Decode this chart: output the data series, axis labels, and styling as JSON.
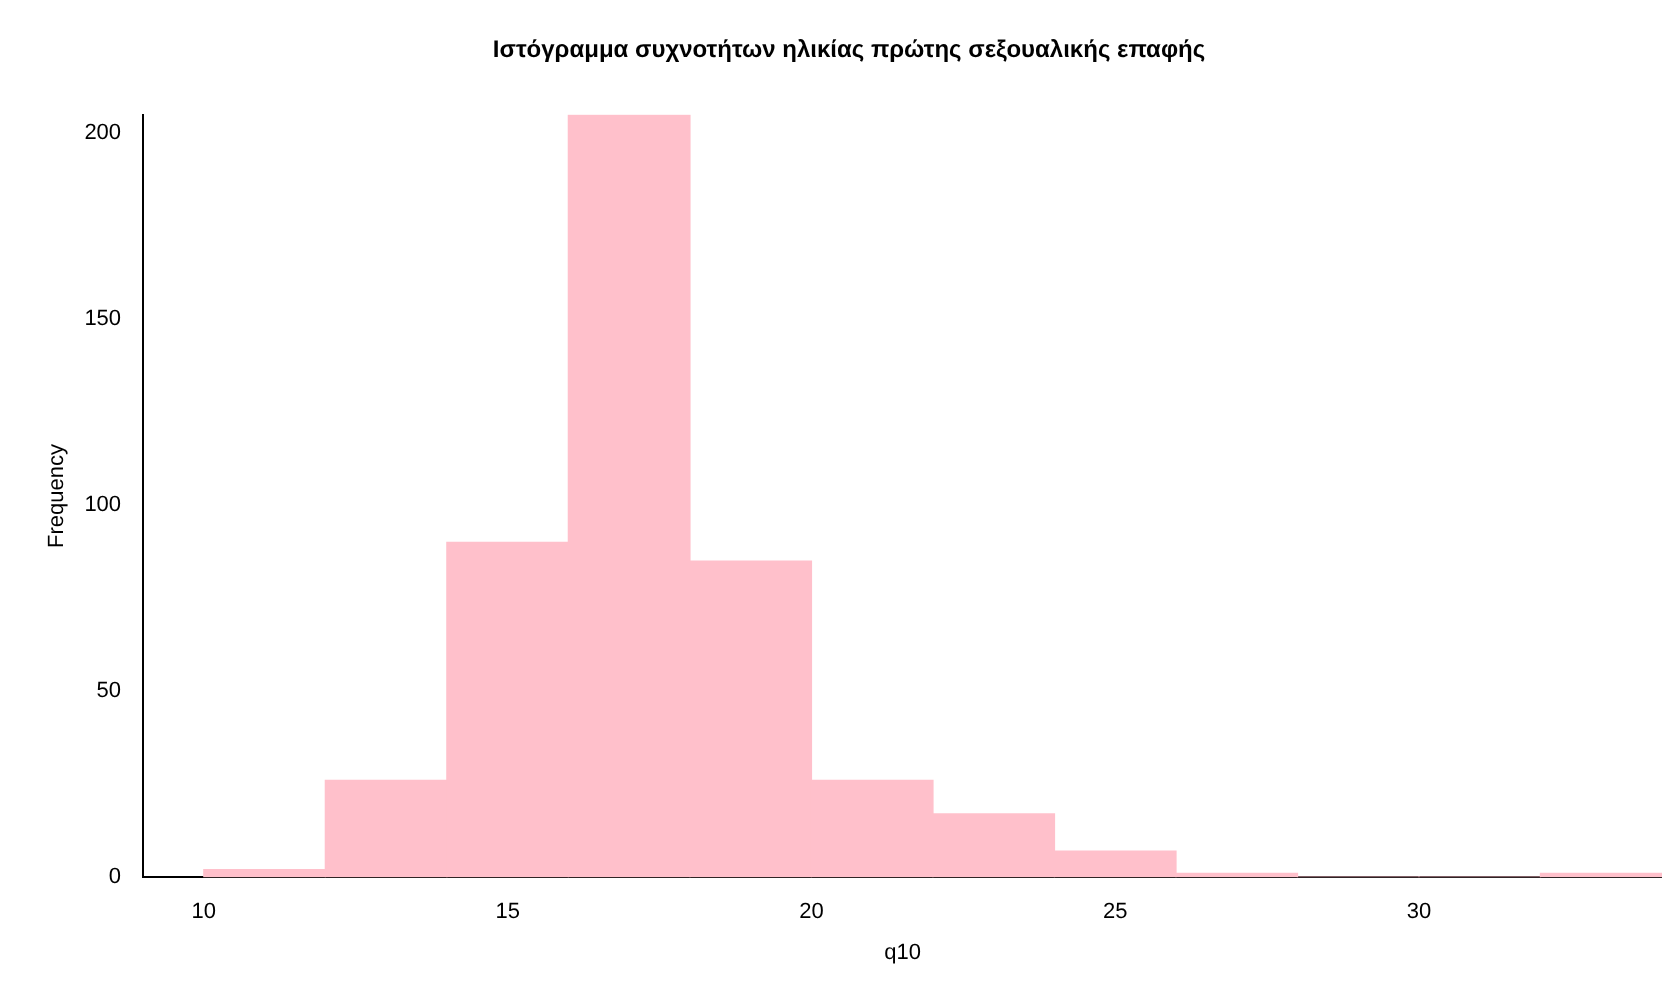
{
  "chart_data": {
    "type": "histogram",
    "title": "Ιστόγραμμα συχνοτήτων ηλικίας πρώτης σεξουαλικής επαφής",
    "xlabel": "q10",
    "ylabel": "Frequency",
    "bins": [
      10,
      12,
      14,
      16,
      18,
      20,
      22,
      24,
      26,
      28,
      30,
      32,
      34
    ],
    "values": [
      2,
      26,
      90,
      205,
      85,
      26,
      17,
      7,
      1,
      0,
      0,
      1
    ],
    "color": "#ffc0cb",
    "xlim": [
      9,
      34
    ],
    "xticks": [
      10,
      15,
      20,
      25,
      30
    ],
    "ylim": [
      0,
      205
    ],
    "yticks": [
      0,
      50,
      100,
      150,
      200
    ],
    "grid": false,
    "legend": false
  }
}
